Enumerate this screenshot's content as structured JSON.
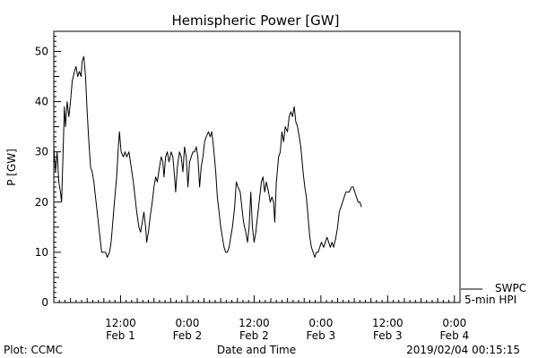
{
  "footer": {
    "plot_credit": "Plot: CCMC",
    "timestamp": "2019/02/04 00:15:15"
  },
  "chart_data": {
    "type": "line",
    "title": "Hemispheric Power [GW]",
    "xlabel": "Date and Time",
    "ylabel": "P [GW]",
    "ylim": [
      0,
      54
    ],
    "xlim": [
      0,
      73
    ],
    "x_unit": "hours since 2019-02-01 00:00 UT",
    "yticks": [
      0,
      10,
      20,
      30,
      40,
      50
    ],
    "xticks": [
      {
        "x": 12,
        "time": "12:00",
        "date": "Feb 1"
      },
      {
        "x": 24,
        "time": "0:00",
        "date": "Feb 2"
      },
      {
        "x": 36,
        "time": "12:00",
        "date": "Feb 2"
      },
      {
        "x": 48,
        "time": "0:00",
        "date": "Feb 3"
      },
      {
        "x": 60,
        "time": "12:00",
        "date": "Feb 3"
      },
      {
        "x": 72,
        "time": "0:00",
        "date": "Feb 4"
      }
    ],
    "grid": false,
    "legend": {
      "position": "right-bottom-outside",
      "entries": [
        "SWPC",
        "5-min HPI"
      ]
    },
    "series": [
      {
        "name": "SWPC",
        "color": "#000000",
        "points": [
          [
            0.0,
            31
          ],
          [
            0.3,
            26
          ],
          [
            0.6,
            30
          ],
          [
            0.9,
            24
          ],
          [
            1.2,
            22
          ],
          [
            1.4,
            20
          ],
          [
            1.6,
            27
          ],
          [
            1.9,
            39
          ],
          [
            2.1,
            35
          ],
          [
            2.4,
            40
          ],
          [
            2.7,
            37
          ],
          [
            3.0,
            40
          ],
          [
            3.3,
            44
          ],
          [
            3.7,
            46
          ],
          [
            4.0,
            47
          ],
          [
            4.3,
            45
          ],
          [
            4.6,
            46
          ],
          [
            4.9,
            45
          ],
          [
            5.1,
            48
          ],
          [
            5.4,
            49
          ],
          [
            5.7,
            45
          ],
          [
            6.0,
            38
          ],
          [
            6.3,
            32
          ],
          [
            6.6,
            27
          ],
          [
            6.9,
            26
          ],
          [
            7.2,
            24
          ],
          [
            7.5,
            21
          ],
          [
            7.7,
            19
          ],
          [
            8.0,
            16
          ],
          [
            8.3,
            13
          ],
          [
            8.6,
            10
          ],
          [
            8.9,
            10
          ],
          [
            9.3,
            10
          ],
          [
            9.6,
            9
          ],
          [
            10.0,
            10
          ],
          [
            10.3,
            12
          ],
          [
            10.6,
            16
          ],
          [
            10.9,
            20
          ],
          [
            11.3,
            25
          ],
          [
            11.6,
            31
          ],
          [
            11.8,
            34
          ],
          [
            12.1,
            30
          ],
          [
            12.5,
            29
          ],
          [
            12.8,
            30
          ],
          [
            13.1,
            29
          ],
          [
            13.5,
            30
          ],
          [
            13.9,
            27
          ],
          [
            14.3,
            24
          ],
          [
            14.6,
            21
          ],
          [
            14.9,
            18
          ],
          [
            15.3,
            15
          ],
          [
            15.6,
            14
          ],
          [
            15.9,
            16
          ],
          [
            16.2,
            18
          ],
          [
            16.5,
            15
          ],
          [
            16.7,
            12
          ],
          [
            17.0,
            14
          ],
          [
            17.3,
            17
          ],
          [
            17.7,
            20
          ],
          [
            18.0,
            23
          ],
          [
            18.3,
            25
          ],
          [
            18.6,
            24
          ],
          [
            19.0,
            27
          ],
          [
            19.3,
            29
          ],
          [
            19.6,
            28
          ],
          [
            19.8,
            25
          ],
          [
            20.1,
            29
          ],
          [
            20.4,
            30
          ],
          [
            20.7,
            28
          ],
          [
            21.1,
            30
          ],
          [
            21.4,
            29
          ],
          [
            21.7,
            25
          ],
          [
            21.9,
            22
          ],
          [
            22.2,
            27
          ],
          [
            22.6,
            30
          ],
          [
            22.9,
            29
          ],
          [
            23.2,
            26
          ],
          [
            23.5,
            31
          ],
          [
            23.8,
            29
          ],
          [
            24.1,
            23
          ],
          [
            24.4,
            28
          ],
          [
            24.7,
            29
          ],
          [
            25.0,
            30
          ],
          [
            25.3,
            30
          ],
          [
            25.6,
            31
          ],
          [
            25.9,
            29
          ],
          [
            26.2,
            23
          ],
          [
            26.5,
            27
          ],
          [
            26.8,
            29
          ],
          [
            27.1,
            32
          ],
          [
            27.4,
            33
          ],
          [
            27.8,
            34
          ],
          [
            28.1,
            33
          ],
          [
            28.4,
            34
          ],
          [
            28.7,
            31
          ],
          [
            29.1,
            26
          ],
          [
            29.4,
            21
          ],
          [
            29.7,
            18
          ],
          [
            30.0,
            15
          ],
          [
            30.3,
            13
          ],
          [
            30.6,
            11
          ],
          [
            30.9,
            10
          ],
          [
            31.2,
            10
          ],
          [
            31.5,
            11
          ],
          [
            31.8,
            13
          ],
          [
            32.1,
            15
          ],
          [
            32.5,
            19
          ],
          [
            32.8,
            24
          ],
          [
            33.1,
            23
          ],
          [
            33.5,
            22
          ],
          [
            33.8,
            19
          ],
          [
            34.1,
            16
          ],
          [
            34.5,
            14
          ],
          [
            34.8,
            12
          ],
          [
            35.1,
            15
          ],
          [
            35.4,
            22
          ],
          [
            35.7,
            15
          ],
          [
            36.0,
            12
          ],
          [
            36.3,
            14
          ],
          [
            36.6,
            17
          ],
          [
            36.9,
            20
          ],
          [
            37.3,
            24
          ],
          [
            37.6,
            25
          ],
          [
            37.9,
            22
          ],
          [
            38.2,
            24
          ],
          [
            38.6,
            22
          ],
          [
            38.9,
            20
          ],
          [
            39.2,
            21
          ],
          [
            39.5,
            20
          ],
          [
            39.7,
            16
          ],
          [
            40.0,
            24
          ],
          [
            40.4,
            29
          ],
          [
            40.7,
            30
          ],
          [
            41.0,
            34
          ],
          [
            41.3,
            32
          ],
          [
            41.6,
            35
          ],
          [
            42.0,
            34
          ],
          [
            42.3,
            37
          ],
          [
            42.6,
            38
          ],
          [
            42.9,
            37
          ],
          [
            43.2,
            39
          ],
          [
            43.5,
            36
          ],
          [
            43.8,
            35
          ],
          [
            44.1,
            33
          ],
          [
            44.4,
            31
          ],
          [
            44.8,
            26
          ],
          [
            45.1,
            23
          ],
          [
            45.4,
            21
          ],
          [
            45.7,
            17
          ],
          [
            46.0,
            13
          ],
          [
            46.3,
            11
          ],
          [
            46.6,
            10
          ],
          [
            46.9,
            9
          ],
          [
            47.2,
            10
          ],
          [
            47.5,
            10
          ],
          [
            47.8,
            11
          ],
          [
            48.1,
            12
          ],
          [
            48.5,
            11
          ],
          [
            48.8,
            12
          ],
          [
            49.1,
            13
          ],
          [
            49.4,
            12
          ],
          [
            49.7,
            11
          ],
          [
            50.0,
            12
          ],
          [
            50.3,
            11
          ],
          [
            50.7,
            13
          ],
          [
            51.0,
            15
          ],
          [
            51.3,
            18
          ],
          [
            51.6,
            19
          ],
          [
            51.9,
            20
          ],
          [
            52.2,
            21
          ],
          [
            52.5,
            22
          ],
          [
            52.8,
            22
          ],
          [
            53.1,
            22
          ],
          [
            53.5,
            23
          ],
          [
            53.8,
            23
          ],
          [
            54.1,
            22
          ],
          [
            54.4,
            21
          ],
          [
            54.7,
            20
          ],
          [
            55.0,
            20
          ],
          [
            55.3,
            19
          ]
        ]
      }
    ]
  }
}
